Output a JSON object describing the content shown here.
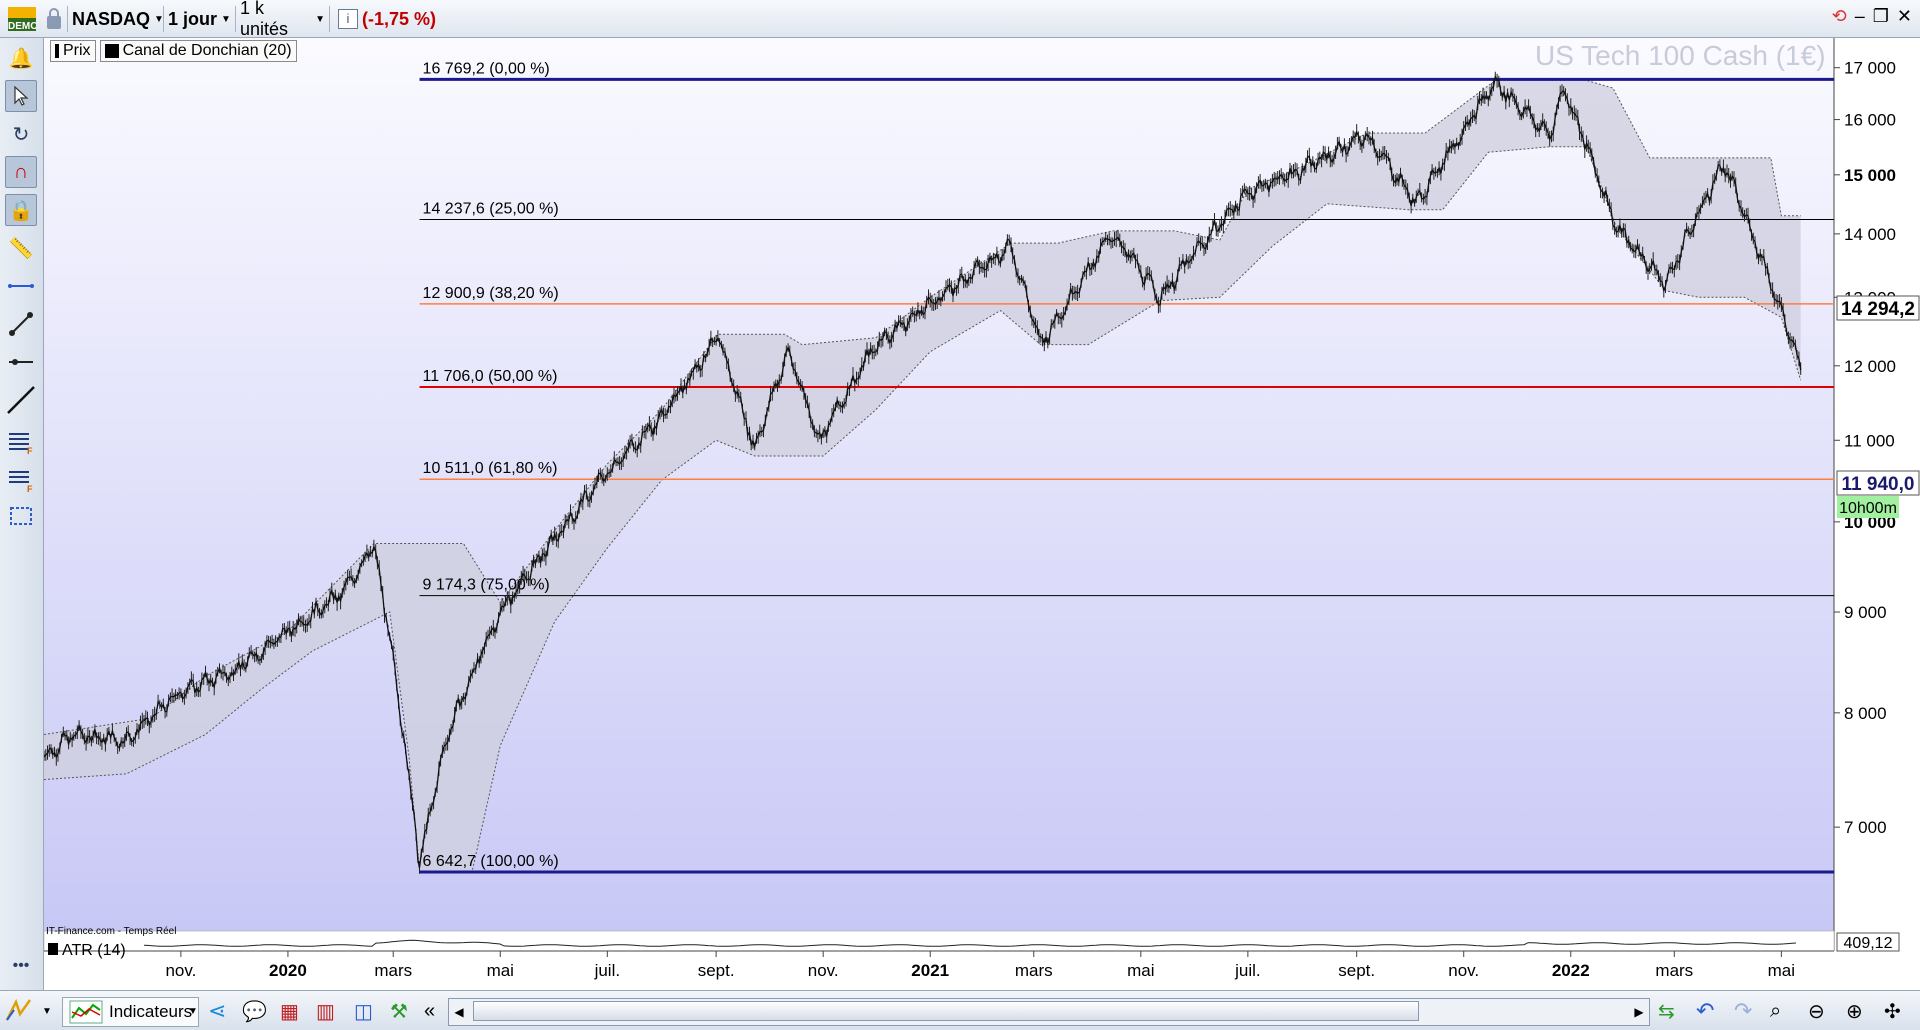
{
  "toolbar": {
    "demo_badge": "DEMO",
    "symbol": "NASDAQ",
    "period": "1 jour",
    "units": "1 k unités",
    "info_icon": "info-icon",
    "change": "(-1,75 %)"
  },
  "colors": {
    "accent": "#1a1a7a",
    "change_negative": "#c00000",
    "fib_orange": "#ff7f40",
    "fib_red": "#e00000",
    "fib_black": "#000000",
    "channel_fill": "#d0d0e0",
    "timer_green": "#a0f0a0"
  },
  "left_tools": [
    "bell-icon",
    "cursor-icon",
    "rotate-cursor-icon",
    "magnet-icon",
    "lock-cursor-icon",
    "ruler-icon",
    "horizontal-line-icon",
    "segment-icon",
    "ray-icon",
    "trend-line-icon",
    "fib-retracement-icon",
    "fib-extension-icon",
    "rectangle-icon"
  ],
  "legend": {
    "price": "Prix",
    "indicator": "Canal de Donchian (20)"
  },
  "watermark": "US Tech 100 Cash (1€)",
  "source": "IT-Finance.com - Temps Réel",
  "atr": {
    "label": "ATR (14)",
    "value": "409,12"
  },
  "price_tags": {
    "last": "11 940,0",
    "fib_tag": "14 294,2",
    "timer": "10h00m"
  },
  "chart_data": {
    "type": "line",
    "y_range": [
      6200,
      17600
    ],
    "y_ticks": [
      7000,
      8000,
      9000,
      10000,
      11000,
      12000,
      13000,
      14000,
      15000,
      16000,
      17000
    ],
    "y_tick_labels": [
      "7 000",
      "8 000",
      "9 000",
      "10 000",
      "11 000",
      "12 000",
      "13 000",
      "14 000",
      "15 000",
      "16 000",
      "17 000"
    ],
    "y_tick_bold": [
      10000,
      15000
    ],
    "x_range": [
      "2019-08-15",
      "2022-05-31"
    ],
    "x_ticks": [
      {
        "date": "2019-11-01",
        "label": "nov.",
        "bold": false
      },
      {
        "date": "2020-01-01",
        "label": "2020",
        "bold": true
      },
      {
        "date": "2020-03-01",
        "label": "mars",
        "bold": false
      },
      {
        "date": "2020-05-01",
        "label": "mai",
        "bold": false
      },
      {
        "date": "2020-07-01",
        "label": "juil.",
        "bold": false
      },
      {
        "date": "2020-09-01",
        "label": "sept.",
        "bold": false
      },
      {
        "date": "2020-11-01",
        "label": "nov.",
        "bold": false
      },
      {
        "date": "2021-01-01",
        "label": "2021",
        "bold": true
      },
      {
        "date": "2021-03-01",
        "label": "mars",
        "bold": false
      },
      {
        "date": "2021-05-01",
        "label": "mai",
        "bold": false
      },
      {
        "date": "2021-07-01",
        "label": "juil.",
        "bold": false
      },
      {
        "date": "2021-09-01",
        "label": "sept.",
        "bold": false
      },
      {
        "date": "2021-11-01",
        "label": "nov.",
        "bold": false
      },
      {
        "date": "2022-01-01",
        "label": "2022",
        "bold": true
      },
      {
        "date": "2022-03-01",
        "label": "mars",
        "bold": false
      },
      {
        "date": "2022-05-01",
        "label": "mai",
        "bold": false
      }
    ],
    "fib_start_date": "2020-03-16",
    "fib_levels": [
      {
        "value": 16769.2,
        "label": "16 769,2 (0,00 %)",
        "color": "#1a1a8c",
        "width": 3
      },
      {
        "value": 14237.6,
        "label": "14 237,6 (25,00 %)",
        "color": "#000000",
        "width": 1
      },
      {
        "value": 12900.9,
        "label": "12 900,9 (38,20 %)",
        "color": "#ff7f40",
        "width": 1.5
      },
      {
        "value": 11706.0,
        "label": "11 706,0 (50,00 %)",
        "color": "#e00000",
        "width": 2
      },
      {
        "value": 10511.0,
        "label": "10 511,0 (61,80 %)",
        "color": "#ff7f40",
        "width": 1.5
      },
      {
        "value": 9174.3,
        "label": "9 174,3 (75,00 %)",
        "color": "#000000",
        "width": 1
      },
      {
        "value": 6642.7,
        "label": "6 642,7 (100,00 %)",
        "color": "#1a1a8c",
        "width": 3
      }
    ],
    "price_series": [
      [
        "2019-08-15",
        7600
      ],
      [
        "2019-09-01",
        7800
      ],
      [
        "2019-10-01",
        7750
      ],
      [
        "2019-11-01",
        8200
      ],
      [
        "2019-12-01",
        8400
      ],
      [
        "2020-01-01",
        8800
      ],
      [
        "2020-02-01",
        9200
      ],
      [
        "2020-02-19",
        9720
      ],
      [
        "2020-03-01",
        8500
      ],
      [
        "2020-03-16",
        6700
      ],
      [
        "2020-04-01",
        7800
      ],
      [
        "2020-05-01",
        9000
      ],
      [
        "2020-06-01",
        9800
      ],
      [
        "2020-07-01",
        10600
      ],
      [
        "2020-08-01",
        11300
      ],
      [
        "2020-09-02",
        12400
      ],
      [
        "2020-09-23",
        10900
      ],
      [
        "2020-10-12",
        12200
      ],
      [
        "2020-10-30",
        11000
      ],
      [
        "2020-12-01",
        12300
      ],
      [
        "2021-01-01",
        12900
      ],
      [
        "2021-02-16",
        13800
      ],
      [
        "2021-03-05",
        12300
      ],
      [
        "2021-04-15",
        14000
      ],
      [
        "2021-05-12",
        13000
      ],
      [
        "2021-06-01",
        13700
      ],
      [
        "2021-07-01",
        14700
      ],
      [
        "2021-08-01",
        15100
      ],
      [
        "2021-09-07",
        15700
      ],
      [
        "2021-10-05",
        14500
      ],
      [
        "2021-11-19",
        16700
      ],
      [
        "2021-12-20",
        15700
      ],
      [
        "2021-12-28",
        16600
      ],
      [
        "2022-01-27",
        14100
      ],
      [
        "2022-02-24",
        13200
      ],
      [
        "2022-03-29",
        15200
      ],
      [
        "2022-05-01",
        12800
      ],
      [
        "2022-05-12",
        11940
      ]
    ],
    "channel_upper": [
      [
        "2019-08-15",
        7800
      ],
      [
        "2019-10-15",
        7950
      ],
      [
        "2019-11-15",
        8350
      ],
      [
        "2020-01-01",
        8800
      ],
      [
        "2020-02-19",
        9750
      ],
      [
        "2020-04-10",
        9750
      ],
      [
        "2020-05-01",
        9100
      ],
      [
        "2020-06-01",
        9900
      ],
      [
        "2020-07-01",
        10700
      ],
      [
        "2020-08-01",
        11400
      ],
      [
        "2020-09-02",
        12450
      ],
      [
        "2020-10-10",
        12450
      ],
      [
        "2020-10-20",
        12300
      ],
      [
        "2020-12-01",
        12400
      ],
      [
        "2021-01-01",
        13000
      ],
      [
        "2021-02-16",
        13850
      ],
      [
        "2021-03-15",
        13850
      ],
      [
        "2021-04-15",
        14050
      ],
      [
        "2021-05-20",
        14050
      ],
      [
        "2021-06-15",
        13900
      ],
      [
        "2021-07-01",
        14750
      ],
      [
        "2021-08-01",
        15150
      ],
      [
        "2021-09-07",
        15750
      ],
      [
        "2021-10-10",
        15750
      ],
      [
        "2021-11-19",
        16750
      ],
      [
        "2022-01-10",
        16750
      ],
      [
        "2022-01-25",
        16600
      ],
      [
        "2022-02-15",
        15300
      ],
      [
        "2022-03-29",
        15300
      ],
      [
        "2022-04-25",
        15300
      ],
      [
        "2022-05-01",
        14300
      ],
      [
        "2022-05-12",
        14300
      ]
    ],
    "channel_lower": [
      [
        "2019-08-15",
        7400
      ],
      [
        "2019-10-01",
        7450
      ],
      [
        "2019-11-15",
        7800
      ],
      [
        "2019-12-15",
        8200
      ],
      [
        "2020-01-15",
        8600
      ],
      [
        "2020-02-28",
        9000
      ],
      [
        "2020-03-10",
        7600
      ],
      [
        "2020-03-16",
        6650
      ],
      [
        "2020-04-15",
        6650
      ],
      [
        "2020-05-01",
        7700
      ],
      [
        "2020-06-01",
        8900
      ],
      [
        "2020-07-01",
        9700
      ],
      [
        "2020-08-01",
        10500
      ],
      [
        "2020-09-01",
        11000
      ],
      [
        "2020-09-23",
        10800
      ],
      [
        "2020-11-01",
        10800
      ],
      [
        "2020-12-01",
        11400
      ],
      [
        "2021-01-01",
        12200
      ],
      [
        "2021-02-10",
        12800
      ],
      [
        "2021-03-05",
        12300
      ],
      [
        "2021-04-01",
        12300
      ],
      [
        "2021-05-12",
        12950
      ],
      [
        "2021-06-15",
        13000
      ],
      [
        "2021-07-15",
        13800
      ],
      [
        "2021-08-15",
        14500
      ],
      [
        "2021-10-01",
        14400
      ],
      [
        "2021-10-20",
        14400
      ],
      [
        "2021-11-15",
        15400
      ],
      [
        "2021-12-20",
        15500
      ],
      [
        "2022-01-10",
        15500
      ],
      [
        "2022-01-27",
        14100
      ],
      [
        "2022-02-24",
        13100
      ],
      [
        "2022-03-15",
        13000
      ],
      [
        "2022-04-10",
        13000
      ],
      [
        "2022-05-01",
        12700
      ],
      [
        "2022-05-12",
        11800
      ]
    ]
  }
}
